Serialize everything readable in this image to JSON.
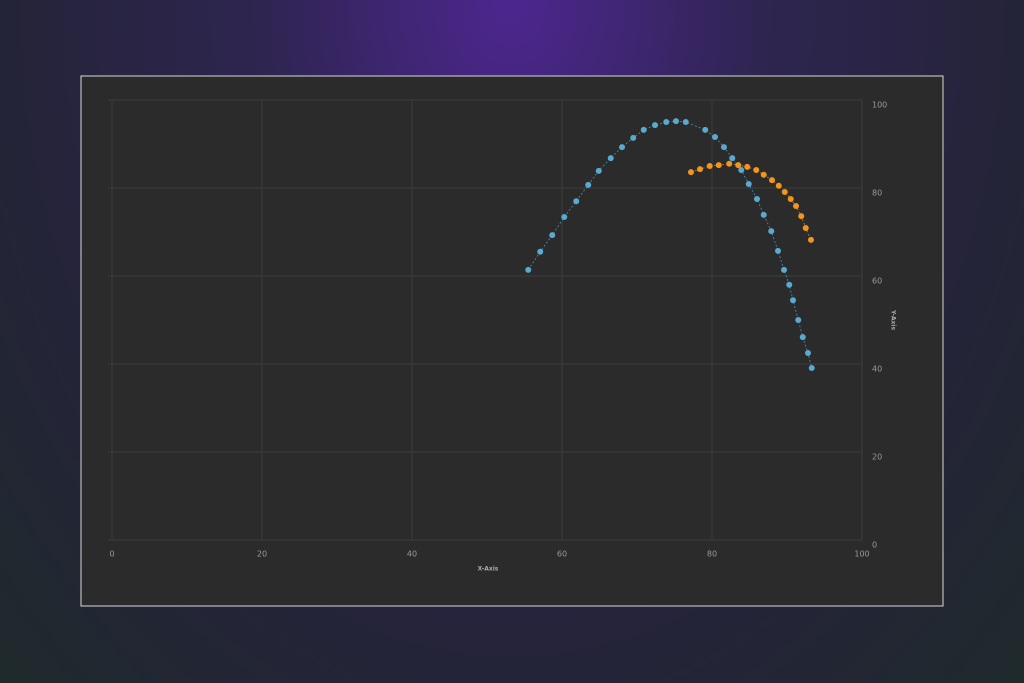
{
  "chart_data": {
    "type": "scatter",
    "x_label": "X-Axis",
    "y_label": "Y-Axis",
    "xlim": [
      0,
      100
    ],
    "xticks": [
      0,
      20,
      40,
      60,
      80,
      100
    ],
    "ylim": [
      0,
      100
    ],
    "yticks": [
      0,
      20,
      40,
      60,
      80,
      100
    ],
    "grid": true,
    "y_axis_side": "right",
    "series": [
      {
        "color": "#5aa9d0",
        "x": [
          55.5,
          57.1,
          58.7,
          60.3,
          61.9,
          63.5,
          64.9,
          66.5,
          68.0,
          69.5,
          70.9,
          72.4,
          73.9,
          75.2,
          76.5,
          79.1,
          80.4,
          81.6,
          82.7,
          83.9,
          84.9,
          86.0,
          86.9,
          87.9,
          88.8,
          89.6,
          90.3,
          90.8,
          91.5,
          92.1,
          92.8,
          93.3
        ],
        "values": [
          61.4,
          65.5,
          69.3,
          73.4,
          77.0,
          80.7,
          83.9,
          86.8,
          89.3,
          91.4,
          93.2,
          94.3,
          95.0,
          95.2,
          95.0,
          93.2,
          91.6,
          89.3,
          86.8,
          84.1,
          80.9,
          77.5,
          73.9,
          70.2,
          65.7,
          61.4,
          58.0,
          54.5,
          50.0,
          46.1,
          42.5,
          39.1
        ]
      },
      {
        "color": "#f0961e",
        "x": [
          77.2,
          78.4,
          79.7,
          80.9,
          82.3,
          83.5,
          84.7,
          85.9,
          86.9,
          88.0,
          88.9,
          89.7,
          90.5,
          91.2,
          91.9,
          92.5,
          93.2
        ],
        "values": [
          83.6,
          84.3,
          85.0,
          85.2,
          85.5,
          85.2,
          84.8,
          84.1,
          83.0,
          81.8,
          80.5,
          79.1,
          77.5,
          75.9,
          73.6,
          70.9,
          68.2
        ]
      }
    ]
  }
}
